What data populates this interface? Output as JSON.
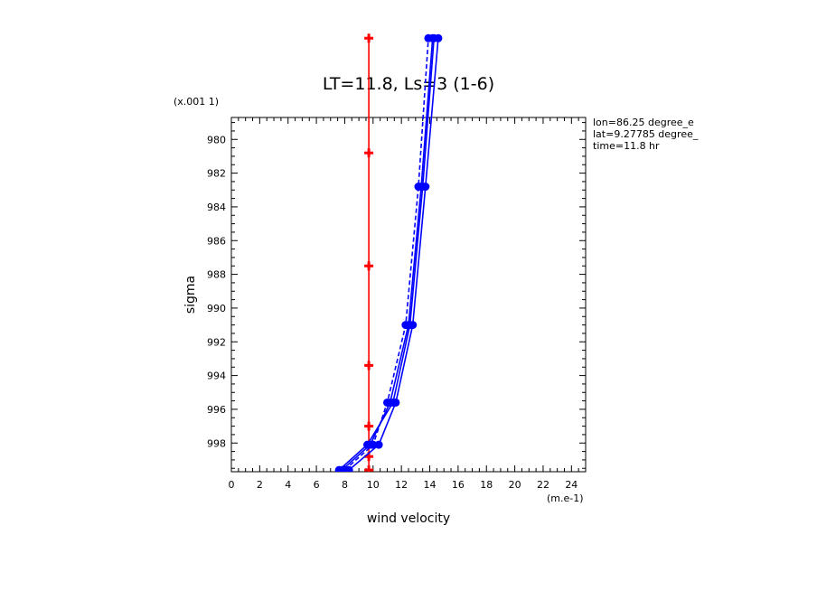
{
  "chart_data": {
    "type": "line",
    "title": "LT=11.8, Ls=3 (1-6)",
    "xlabel": "wind velocity",
    "ylabel": "sigma",
    "x_units": "(m.e-1)",
    "y_scale_note": "(x.001 1)",
    "xlim": [
      0,
      25
    ],
    "ylim": [
      999.7,
      978.7
    ],
    "x_ticks": [
      0,
      2,
      4,
      6,
      8,
      10,
      12,
      14,
      16,
      18,
      20,
      22,
      24
    ],
    "y_ticks": [
      980,
      982,
      984,
      986,
      988,
      990,
      992,
      994,
      996,
      998
    ],
    "info": [
      "lon=86.25 degree_e",
      "lat=9.27785 degree_",
      "time=11.8 hr"
    ],
    "series": [
      {
        "color": "#ff0000",
        "dash": "solid",
        "marker": "plus",
        "points": [
          [
            9.7,
            999.6
          ],
          [
            9.7,
            998.8
          ],
          [
            9.7,
            997.0
          ],
          [
            9.7,
            993.4
          ],
          [
            9.7,
            987.5
          ],
          [
            9.7,
            980.8
          ],
          [
            9.7,
            974.0
          ]
        ]
      },
      {
        "color": "#0000ff",
        "dash": "solid",
        "marker": "dot",
        "points": [
          [
            7.8,
            999.6
          ],
          [
            9.8,
            998.1
          ],
          [
            11.2,
            995.6
          ],
          [
            12.5,
            991.0
          ],
          [
            13.4,
            982.8
          ],
          [
            14.2,
            974.0
          ]
        ]
      },
      {
        "color": "#0000ff",
        "dash": "solid",
        "marker": "dot",
        "points": [
          [
            8.3,
            999.6
          ],
          [
            10.4,
            998.1
          ],
          [
            11.6,
            995.6
          ],
          [
            12.8,
            991.0
          ],
          [
            13.7,
            982.8
          ],
          [
            14.6,
            974.0
          ]
        ]
      },
      {
        "color": "#0000ff",
        "dash": "dashed",
        "marker": "dot",
        "points": [
          [
            8.0,
            999.6
          ],
          [
            10.0,
            998.1
          ],
          [
            11.0,
            995.6
          ],
          [
            12.3,
            991.0
          ],
          [
            13.2,
            982.8
          ],
          [
            13.9,
            974.0
          ]
        ]
      },
      {
        "color": "#0000ff",
        "dash": "solid",
        "marker": "dot",
        "points": [
          [
            7.6,
            999.6
          ],
          [
            9.6,
            998.1
          ],
          [
            11.4,
            995.6
          ],
          [
            12.6,
            991.0
          ],
          [
            13.5,
            982.8
          ],
          [
            14.3,
            974.0
          ]
        ]
      }
    ]
  }
}
